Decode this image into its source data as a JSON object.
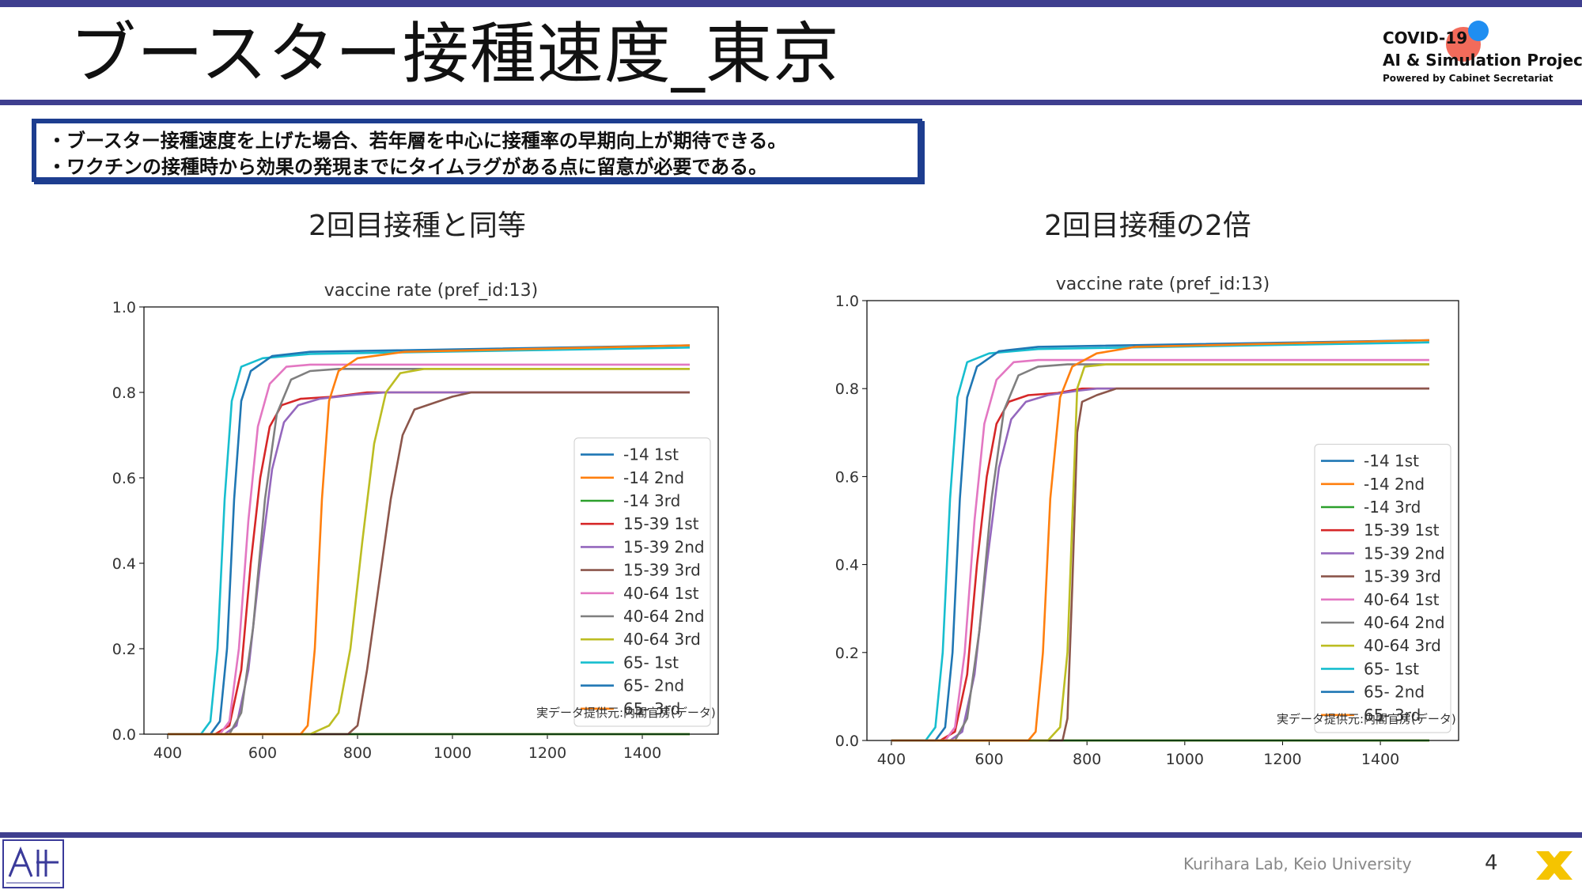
{
  "slide": {
    "title": "ブースター接種速度_東京",
    "logo_line1": "COVID-19",
    "logo_line2": "AI & Simulation Project",
    "logo_line3": "Powered by Cabinet Secretariat",
    "bullets": [
      "・ブースター接種速度を上げた場合、若年層を中心に接種率の早期向上が期待できる。",
      "・ワクチンの接種時から効果の発現までにタイムラグがある点に留意が必要である。"
    ],
    "left_panel_title": "2回目接種と同等",
    "right_panel_title": "2回目接種の2倍",
    "footer_lab": "Kurihara Lab, Keio University",
    "page_number": "4",
    "logo_colors": {
      "red": "#f26b5b",
      "blue": "#1f8ef1",
      "bar": "#3f3f8f",
      "x_logo": "#f5c400"
    }
  },
  "chart_data": [
    {
      "type": "line",
      "title": "vaccine rate (pref_id:13)",
      "xlim": [
        350,
        1560
      ],
      "ylim": [
        0,
        1.0
      ],
      "xticks": [
        400,
        600,
        800,
        1000,
        1200,
        1400
      ],
      "yticks": [
        0.0,
        0.2,
        0.4,
        0.6,
        0.8,
        1.0
      ],
      "grid": false,
      "legend_position": "lower-right",
      "annotation": "実データ提供元:内閣官房(データ)",
      "series": [
        {
          "name": "-14  1st",
          "color": "#1f77b4",
          "points": [
            [
              400,
              0
            ],
            [
              1500,
              0
            ]
          ]
        },
        {
          "name": "-14  2nd",
          "color": "#ff7f0e",
          "points": [
            [
              400,
              0
            ],
            [
              1500,
              0
            ]
          ]
        },
        {
          "name": "-14  3rd",
          "color": "#2ca02c",
          "points": [
            [
              400,
              0
            ],
            [
              1500,
              0
            ]
          ]
        },
        {
          "name": "15-39  1st",
          "color": "#d62728",
          "points": [
            [
              400,
              0
            ],
            [
              500,
              0
            ],
            [
              530,
              0.02
            ],
            [
              555,
              0.15
            ],
            [
              575,
              0.4
            ],
            [
              595,
              0.6
            ],
            [
              615,
              0.72
            ],
            [
              640,
              0.77
            ],
            [
              680,
              0.785
            ],
            [
              750,
              0.79
            ],
            [
              820,
              0.8
            ],
            [
              1500,
              0.8
            ]
          ]
        },
        {
          "name": "15-39  2nd",
          "color": "#9467bd",
          "points": [
            [
              400,
              0
            ],
            [
              520,
              0
            ],
            [
              545,
              0.02
            ],
            [
              570,
              0.15
            ],
            [
              595,
              0.4
            ],
            [
              620,
              0.62
            ],
            [
              645,
              0.73
            ],
            [
              675,
              0.77
            ],
            [
              720,
              0.785
            ],
            [
              800,
              0.795
            ],
            [
              860,
              0.8
            ],
            [
              1500,
              0.8
            ]
          ]
        },
        {
          "name": "15-39  3rd",
          "color": "#8c564b",
          "points": [
            [
              400,
              0
            ],
            [
              780,
              0
            ],
            [
              800,
              0.02
            ],
            [
              820,
              0.15
            ],
            [
              845,
              0.35
            ],
            [
              870,
              0.55
            ],
            [
              895,
              0.7
            ],
            [
              920,
              0.76
            ],
            [
              960,
              0.775
            ],
            [
              1000,
              0.79
            ],
            [
              1040,
              0.8
            ],
            [
              1500,
              0.8
            ]
          ]
        },
        {
          "name": "40-64  1st",
          "color": "#e377c2",
          "points": [
            [
              400,
              0
            ],
            [
              510,
              0
            ],
            [
              530,
              0.03
            ],
            [
              550,
              0.2
            ],
            [
              570,
              0.5
            ],
            [
              590,
              0.72
            ],
            [
              615,
              0.82
            ],
            [
              650,
              0.86
            ],
            [
              700,
              0.865
            ],
            [
              1500,
              0.865
            ]
          ]
        },
        {
          "name": "40-64  2nd",
          "color": "#7f7f7f",
          "points": [
            [
              400,
              0
            ],
            [
              530,
              0
            ],
            [
              555,
              0.05
            ],
            [
              580,
              0.25
            ],
            [
              605,
              0.55
            ],
            [
              630,
              0.75
            ],
            [
              660,
              0.83
            ],
            [
              700,
              0.85
            ],
            [
              760,
              0.855
            ],
            [
              1500,
              0.855
            ]
          ]
        },
        {
          "name": "40-64  3rd",
          "color": "#bcbd22",
          "points": [
            [
              400,
              0
            ],
            [
              700,
              0
            ],
            [
              740,
              0.02
            ],
            [
              760,
              0.05
            ],
            [
              785,
              0.2
            ],
            [
              810,
              0.45
            ],
            [
              835,
              0.68
            ],
            [
              860,
              0.8
            ],
            [
              890,
              0.845
            ],
            [
              940,
              0.855
            ],
            [
              1500,
              0.855
            ]
          ]
        },
        {
          "name": "65-  1st",
          "color": "#17becf",
          "points": [
            [
              400,
              0
            ],
            [
              470,
              0
            ],
            [
              490,
              0.03
            ],
            [
              505,
              0.2
            ],
            [
              520,
              0.55
            ],
            [
              535,
              0.78
            ],
            [
              555,
              0.86
            ],
            [
              600,
              0.88
            ],
            [
              700,
              0.89
            ],
            [
              1500,
              0.905
            ]
          ]
        },
        {
          "name": "65-  2nd",
          "color": "#1f77b4",
          "points": [
            [
              400,
              0
            ],
            [
              490,
              0
            ],
            [
              510,
              0.03
            ],
            [
              525,
              0.2
            ],
            [
              540,
              0.55
            ],
            [
              555,
              0.78
            ],
            [
              575,
              0.85
            ],
            [
              620,
              0.885
            ],
            [
              700,
              0.895
            ],
            [
              1500,
              0.91
            ]
          ]
        },
        {
          "name": "65-  3rd",
          "color": "#ff7f0e",
          "points": [
            [
              400,
              0
            ],
            [
              680,
              0
            ],
            [
              695,
              0.02
            ],
            [
              710,
              0.2
            ],
            [
              725,
              0.55
            ],
            [
              740,
              0.78
            ],
            [
              760,
              0.85
            ],
            [
              800,
              0.88
            ],
            [
              900,
              0.895
            ],
            [
              1500,
              0.91
            ]
          ]
        }
      ]
    },
    {
      "type": "line",
      "title": "vaccine rate (pref_id:13)",
      "xlim": [
        350,
        1560
      ],
      "ylim": [
        0,
        1.0
      ],
      "xticks": [
        400,
        600,
        800,
        1000,
        1200,
        1400
      ],
      "yticks": [
        0.0,
        0.2,
        0.4,
        0.6,
        0.8,
        1.0
      ],
      "grid": false,
      "legend_position": "lower-right",
      "annotation": "実データ提供元:内閣官房(データ)",
      "series": [
        {
          "name": "-14  1st",
          "color": "#1f77b4",
          "points": [
            [
              400,
              0
            ],
            [
              1500,
              0
            ]
          ]
        },
        {
          "name": "-14  2nd",
          "color": "#ff7f0e",
          "points": [
            [
              400,
              0
            ],
            [
              1500,
              0
            ]
          ]
        },
        {
          "name": "-14  3rd",
          "color": "#2ca02c",
          "points": [
            [
              400,
              0
            ],
            [
              1500,
              0
            ]
          ]
        },
        {
          "name": "15-39  1st",
          "color": "#d62728",
          "points": [
            [
              400,
              0
            ],
            [
              500,
              0
            ],
            [
              530,
              0.02
            ],
            [
              555,
              0.15
            ],
            [
              575,
              0.4
            ],
            [
              595,
              0.6
            ],
            [
              615,
              0.72
            ],
            [
              640,
              0.77
            ],
            [
              680,
              0.785
            ],
            [
              740,
              0.79
            ],
            [
              790,
              0.8
            ],
            [
              1500,
              0.8
            ]
          ]
        },
        {
          "name": "15-39  2nd",
          "color": "#9467bd",
          "points": [
            [
              400,
              0
            ],
            [
              520,
              0
            ],
            [
              545,
              0.02
            ],
            [
              570,
              0.15
            ],
            [
              595,
              0.4
            ],
            [
              620,
              0.62
            ],
            [
              645,
              0.73
            ],
            [
              675,
              0.77
            ],
            [
              720,
              0.785
            ],
            [
              780,
              0.795
            ],
            [
              820,
              0.8
            ],
            [
              1500,
              0.8
            ]
          ]
        },
        {
          "name": "15-39  3rd",
          "color": "#8c564b",
          "points": [
            [
              400,
              0
            ],
            [
              750,
              0
            ],
            [
              760,
              0.05
            ],
            [
              770,
              0.35
            ],
            [
              780,
              0.7
            ],
            [
              790,
              0.77
            ],
            [
              820,
              0.785
            ],
            [
              860,
              0.8
            ],
            [
              1500,
              0.8
            ]
          ]
        },
        {
          "name": "40-64  1st",
          "color": "#e377c2",
          "points": [
            [
              400,
              0
            ],
            [
              510,
              0
            ],
            [
              530,
              0.03
            ],
            [
              550,
              0.2
            ],
            [
              570,
              0.5
            ],
            [
              590,
              0.72
            ],
            [
              615,
              0.82
            ],
            [
              650,
              0.86
            ],
            [
              700,
              0.865
            ],
            [
              1500,
              0.865
            ]
          ]
        },
        {
          "name": "40-64  2nd",
          "color": "#7f7f7f",
          "points": [
            [
              400,
              0
            ],
            [
              530,
              0
            ],
            [
              555,
              0.05
            ],
            [
              580,
              0.25
            ],
            [
              605,
              0.55
            ],
            [
              630,
              0.75
            ],
            [
              660,
              0.83
            ],
            [
              700,
              0.85
            ],
            [
              760,
              0.855
            ],
            [
              1500,
              0.855
            ]
          ]
        },
        {
          "name": "40-64  3rd",
          "color": "#bcbd22",
          "points": [
            [
              400,
              0
            ],
            [
              720,
              0
            ],
            [
              745,
              0.03
            ],
            [
              760,
              0.2
            ],
            [
              770,
              0.5
            ],
            [
              780,
              0.8
            ],
            [
              795,
              0.85
            ],
            [
              840,
              0.855
            ],
            [
              1500,
              0.855
            ]
          ]
        },
        {
          "name": "65-  1st",
          "color": "#17becf",
          "points": [
            [
              400,
              0
            ],
            [
              470,
              0
            ],
            [
              490,
              0.03
            ],
            [
              505,
              0.2
            ],
            [
              520,
              0.55
            ],
            [
              535,
              0.78
            ],
            [
              555,
              0.86
            ],
            [
              600,
              0.88
            ],
            [
              700,
              0.89
            ],
            [
              1500,
              0.905
            ]
          ]
        },
        {
          "name": "65-  2nd",
          "color": "#1f77b4",
          "points": [
            [
              400,
              0
            ],
            [
              490,
              0
            ],
            [
              510,
              0.03
            ],
            [
              525,
              0.2
            ],
            [
              540,
              0.55
            ],
            [
              555,
              0.78
            ],
            [
              575,
              0.85
            ],
            [
              620,
              0.885
            ],
            [
              700,
              0.895
            ],
            [
              1500,
              0.91
            ]
          ]
        },
        {
          "name": "65-  3rd",
          "color": "#ff7f0e",
          "points": [
            [
              400,
              0
            ],
            [
              680,
              0
            ],
            [
              695,
              0.02
            ],
            [
              710,
              0.2
            ],
            [
              725,
              0.55
            ],
            [
              745,
              0.78
            ],
            [
              770,
              0.85
            ],
            [
              820,
              0.88
            ],
            [
              900,
              0.895
            ],
            [
              1500,
              0.91
            ]
          ]
        }
      ]
    }
  ]
}
